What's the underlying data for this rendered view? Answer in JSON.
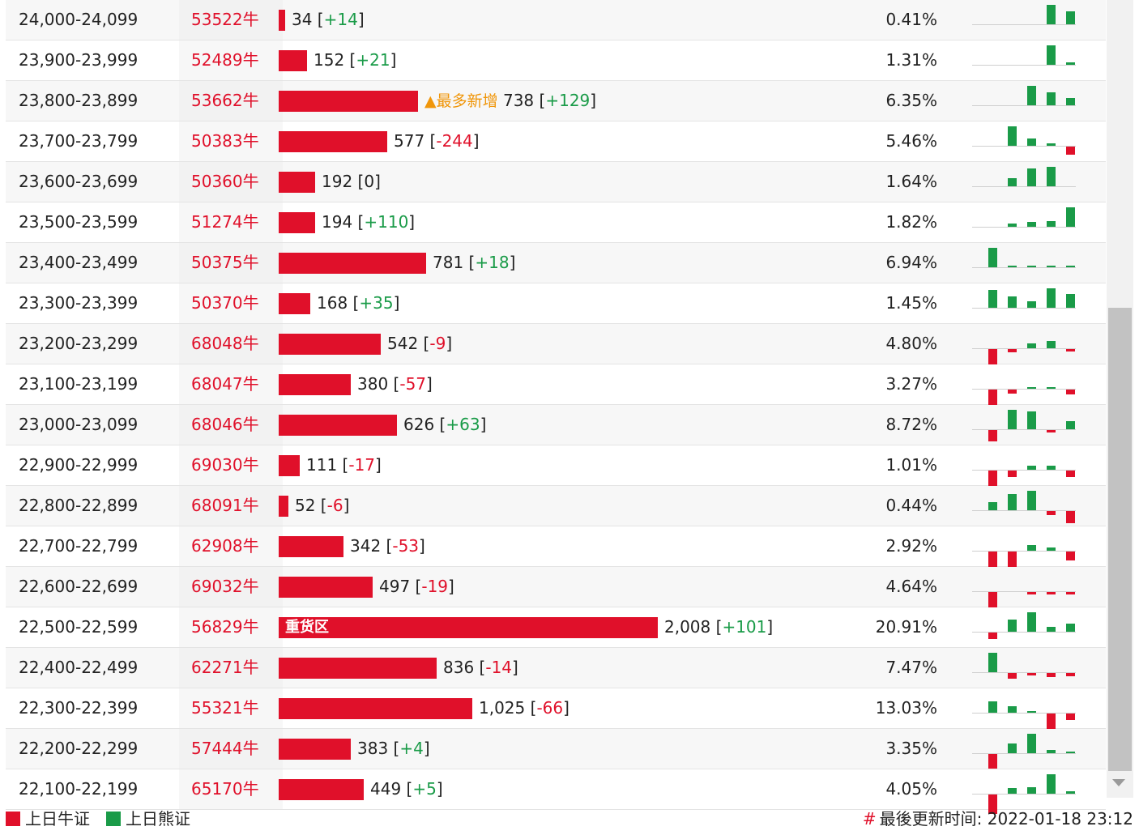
{
  "colors": {
    "bull": "#e0102a",
    "bear": "#1a9b48",
    "accent": "#f0960a"
  },
  "max_count": 2008,
  "rows": [
    {
      "range": "24,000-24,099",
      "code": "53522牛",
      "count": "34",
      "change": "+14",
      "pct": "0.41%",
      "value": 34,
      "spark": [
        0,
        0,
        0,
        0,
        24,
        16
      ]
    },
    {
      "range": "23,900-23,999",
      "code": "52489牛",
      "count": "152",
      "change": "+21",
      "pct": "1.31%",
      "value": 152,
      "spark": [
        0,
        0,
        0,
        0,
        24,
        3
      ]
    },
    {
      "range": "23,800-23,899",
      "code": "53662牛",
      "count": "738",
      "change": "+129",
      "pct": "6.35%",
      "value": 738,
      "note": "▲最多新增",
      "spark": [
        0,
        0,
        0,
        24,
        16,
        9
      ]
    },
    {
      "range": "23,700-23,799",
      "code": "50383牛",
      "count": "577",
      "change": "-244",
      "pct": "5.46%",
      "value": 577,
      "spark": [
        0,
        0,
        24,
        9,
        3,
        -10
      ]
    },
    {
      "range": "23,600-23,699",
      "code": "50360牛",
      "count": "192",
      "change": "0",
      "pct": "1.64%",
      "value": 192,
      "spark": [
        0,
        0,
        10,
        22,
        24,
        0
      ]
    },
    {
      "range": "23,500-23,599",
      "code": "51274牛",
      "count": "194",
      "change": "+110",
      "pct": "1.82%",
      "value": 194,
      "spark": [
        0,
        0,
        4,
        6,
        7,
        24
      ]
    },
    {
      "range": "23,400-23,499",
      "code": "50375牛",
      "count": "781",
      "change": "+18",
      "pct": "6.94%",
      "value": 781,
      "spark": [
        0,
        24,
        2,
        2,
        2,
        2
      ]
    },
    {
      "range": "23,300-23,399",
      "code": "50370牛",
      "count": "168",
      "change": "+35",
      "pct": "1.45%",
      "value": 168,
      "spark": [
        0,
        22,
        14,
        8,
        24,
        17
      ]
    },
    {
      "range": "23,200-23,299",
      "code": "68048牛",
      "count": "542",
      "change": "-9",
      "pct": "4.80%",
      "value": 542,
      "spark": [
        0,
        -24,
        -4,
        6,
        9,
        -3
      ]
    },
    {
      "range": "23,100-23,199",
      "code": "68047牛",
      "count": "380",
      "change": "-57",
      "pct": "3.27%",
      "value": 380,
      "spark": [
        0,
        -24,
        -5,
        2,
        2,
        -6
      ]
    },
    {
      "range": "23,000-23,099",
      "code": "68046牛",
      "count": "626",
      "change": "+63",
      "pct": "8.72%",
      "value": 626,
      "spark": [
        0,
        -14,
        24,
        22,
        -3,
        10
      ]
    },
    {
      "range": "22,900-22,999",
      "code": "69030牛",
      "count": "111",
      "change": "-17",
      "pct": "1.01%",
      "value": 111,
      "spark": [
        0,
        -24,
        -8,
        5,
        5,
        -8
      ]
    },
    {
      "range": "22,800-22,899",
      "code": "68091牛",
      "count": "52",
      "change": "-6",
      "pct": "0.44%",
      "value": 52,
      "spark": [
        0,
        10,
        20,
        24,
        -5,
        -15
      ]
    },
    {
      "range": "22,700-22,799",
      "code": "62908牛",
      "count": "342",
      "change": "-53",
      "pct": "2.92%",
      "value": 342,
      "spark": [
        0,
        -24,
        -21,
        7,
        4,
        -11
      ]
    },
    {
      "range": "22,600-22,699",
      "code": "69032牛",
      "count": "497",
      "change": "-19",
      "pct": "4.64%",
      "value": 497,
      "spark": [
        0,
        -24,
        0,
        -3,
        -3,
        -3
      ]
    },
    {
      "range": "22,500-22,599",
      "code": "56829牛",
      "count": "2,008",
      "change": "+101",
      "pct": "20.91%",
      "value": 2008,
      "note": "重货区",
      "spark": [
        0,
        -8,
        15,
        24,
        6,
        10
      ]
    },
    {
      "range": "22,400-22,499",
      "code": "62271牛",
      "count": "836",
      "change": "-14",
      "pct": "7.47%",
      "value": 836,
      "spark": [
        0,
        24,
        -7,
        -3,
        -5,
        -4
      ]
    },
    {
      "range": "22,300-22,399",
      "code": "55321牛",
      "count": "1,025",
      "change": "-66",
      "pct": "13.03%",
      "value": 1025,
      "spark": [
        0,
        14,
        8,
        2,
        -24,
        -8
      ]
    },
    {
      "range": "22,200-22,299",
      "code": "57444牛",
      "count": "383",
      "change": "+4",
      "pct": "3.35%",
      "value": 383,
      "spark": [
        0,
        -18,
        12,
        24,
        4,
        2
      ]
    },
    {
      "range": "22,100-22,199",
      "code": "65170牛",
      "count": "449",
      "change": "+5",
      "pct": "4.05%",
      "value": 449,
      "spark": [
        0,
        -24,
        7,
        8,
        24,
        3
      ]
    }
  ],
  "legend": {
    "bull": "上日牛证",
    "bear": "上日熊证"
  },
  "footer": {
    "updated_label": "最後更新时间:",
    "updated_time": "2022-01-18 23:12"
  }
}
